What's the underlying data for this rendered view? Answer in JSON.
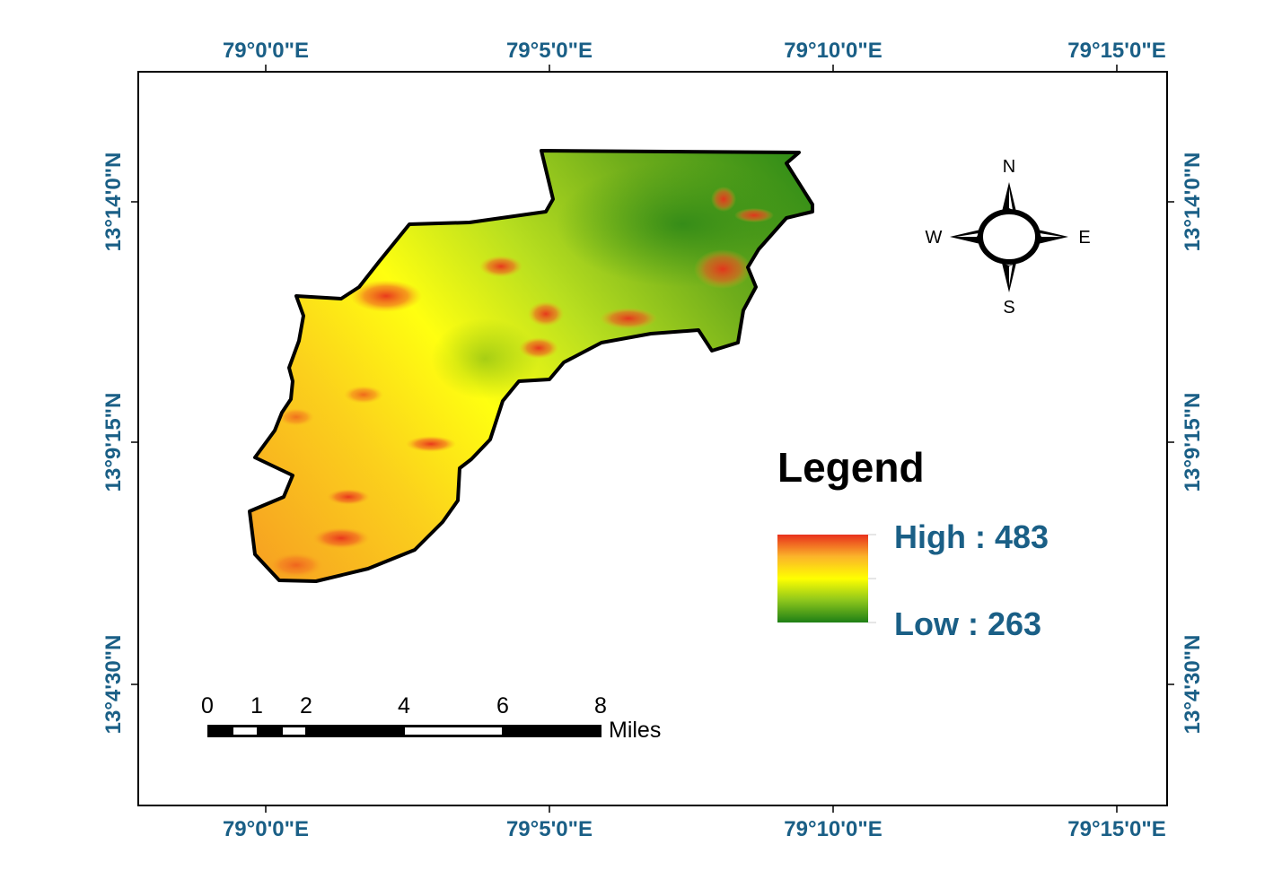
{
  "map": {
    "longitude_labels": [
      "79°0'0\"E",
      "79°5'0\"E",
      "79°10'0\"E",
      "79°15'0\"E"
    ],
    "latitude_labels": [
      "13°14'0\"N",
      "13°9'15\"N",
      "13°4'30\"N"
    ]
  },
  "legend": {
    "title": "Legend",
    "high_label": "High : 483",
    "low_label": "Low : 263",
    "ramp_colors": [
      "#e8301c",
      "#fbb42a",
      "#ffff00",
      "#8dc61c",
      "#1e7f16"
    ]
  },
  "scale_bar": {
    "ticks": [
      "0",
      "1",
      "2",
      "4",
      "6",
      "8"
    ],
    "unit": "Miles"
  },
  "north_arrow": {
    "n": "N",
    "s": "S",
    "e": "E",
    "w": "W"
  },
  "colors": {
    "coordinate_text": "#1a5f86",
    "frame": "#000000"
  }
}
